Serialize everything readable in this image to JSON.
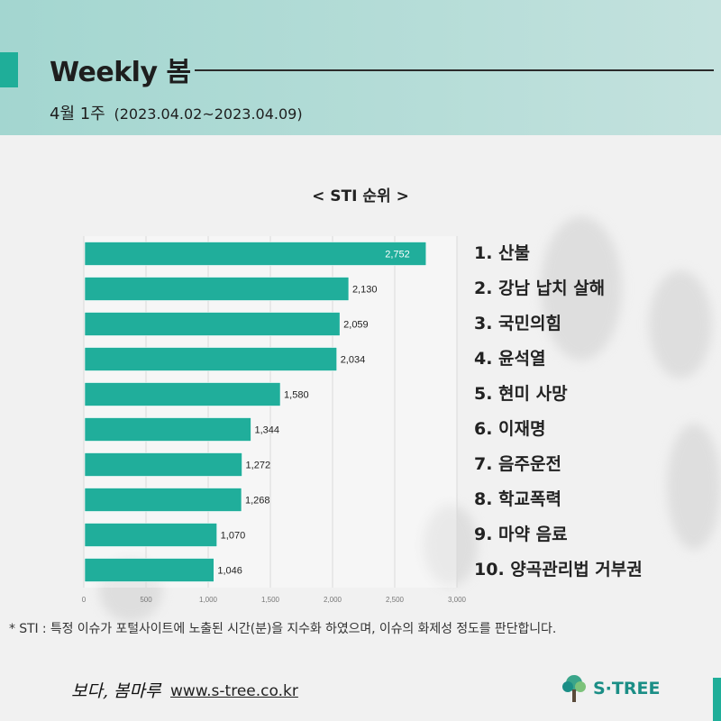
{
  "header": {
    "title": "Weekly 봄",
    "week": "4월 1주",
    "date_range": "(2023.04.02~2023.04.09)"
  },
  "chart_data": {
    "type": "bar",
    "orientation": "horizontal",
    "title": "< STI 순위 >",
    "categories": [
      "산불",
      "강남 납치 살해",
      "국민의힘",
      "윤석열",
      "현미 사망",
      "이재명",
      "음주운전",
      "학교폭력",
      "마약 음료",
      "양곡관리법 거부권"
    ],
    "rank_labels": [
      "1. 산불",
      "2. 강남 납치 살해",
      "3. 국민의힘",
      "4. 윤석열",
      "5. 현미 사망",
      "6. 이재명",
      "7. 음주운전",
      "8. 학교폭력",
      "9. 마약 음료",
      "10. 양곡관리법 거부권"
    ],
    "values": [
      2752,
      2130,
      2059,
      2034,
      1580,
      1344,
      1272,
      1268,
      1070,
      1046
    ],
    "value_labels": [
      "2,752",
      "2,130",
      "2,059",
      "2,034",
      "1,580",
      "1,344",
      "1,272",
      "1,268",
      "1,070",
      "1,046"
    ],
    "xlim": [
      0,
      3000
    ],
    "x_ticks": [
      "0",
      "500",
      "1,000",
      "1,500",
      "2,000",
      "2,500",
      "3,000"
    ],
    "grid": true,
    "bar_color": "#20ae9b",
    "xlabel": "",
    "ylabel": ""
  },
  "footnote": "* STI : 특정 이슈가 포털사이트에 노출된 시간(분)을 지수화 하였으며, 이슈의 화제성 정도를 판단합니다.",
  "footer": {
    "brand": "보다, 봄마루",
    "website": "www.s-tree.co.kr",
    "logo_text": "S·TREE",
    "logo_icon": "tree-icon"
  },
  "colors": {
    "accent": "#1fae99",
    "header_bg": "#a9d8d2",
    "logo": "#1b8e86"
  }
}
